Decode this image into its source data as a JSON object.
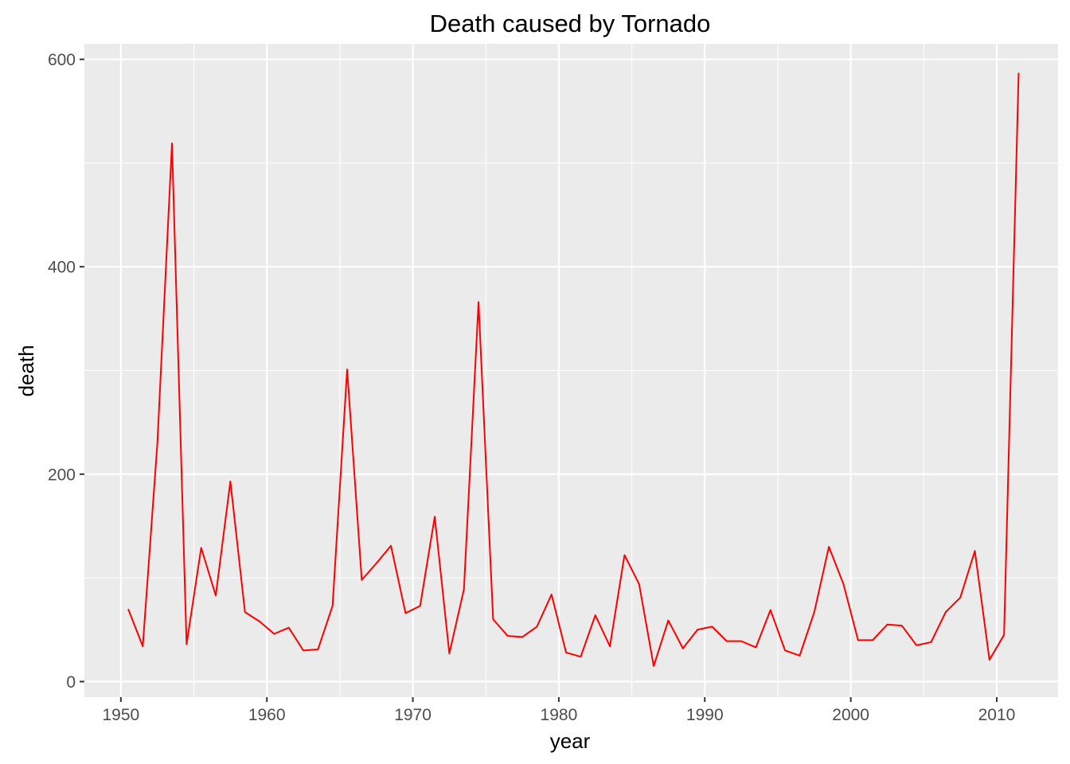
{
  "chart_data": {
    "type": "line",
    "title": "Death caused by Tornado",
    "xlabel": "year",
    "ylabel": "death",
    "xlim": [
      1947.5,
      2014.2
    ],
    "ylim": [
      -15,
      615
    ],
    "x_ticks": [
      1950,
      1960,
      1970,
      1980,
      1990,
      2000,
      2010
    ],
    "y_ticks": [
      0,
      200,
      400,
      600
    ],
    "grid": true,
    "panel_background": "#ebebeb",
    "line_color": "#ff0000",
    "series": [
      {
        "x": [
          1950,
          1951,
          1952,
          1953,
          1954,
          1955,
          1956,
          1957,
          1958,
          1959,
          1960,
          1961,
          1962,
          1963,
          1964,
          1965,
          1966,
          1967,
          1968,
          1969,
          1970,
          1971,
          1972,
          1973,
          1974,
          1975,
          1976,
          1977,
          1978,
          1979,
          1980,
          1981,
          1982,
          1983,
          1984,
          1985,
          1986,
          1987,
          1988,
          1989,
          1990,
          1991,
          1992,
          1993,
          1994,
          1995,
          1996,
          1997,
          1998,
          1999,
          2000,
          2001,
          2002,
          2003,
          2004,
          2005,
          2006,
          2007,
          2008,
          2009,
          2010,
          2011
        ],
        "values": [
          70,
          34,
          230,
          519,
          36,
          129,
          83,
          193,
          67,
          58,
          46,
          52,
          30,
          31,
          73,
          301,
          98,
          114,
          131,
          66,
          73,
          159,
          27,
          89,
          366,
          60,
          44,
          43,
          53,
          84,
          28,
          24,
          64,
          34,
          122,
          94,
          15,
          59,
          32,
          50,
          53,
          39,
          39,
          33,
          69,
          30,
          25,
          67,
          130,
          94,
          40,
          40,
          55,
          54,
          35,
          38,
          67,
          81,
          126,
          21,
          45,
          587
        ]
      }
    ]
  }
}
